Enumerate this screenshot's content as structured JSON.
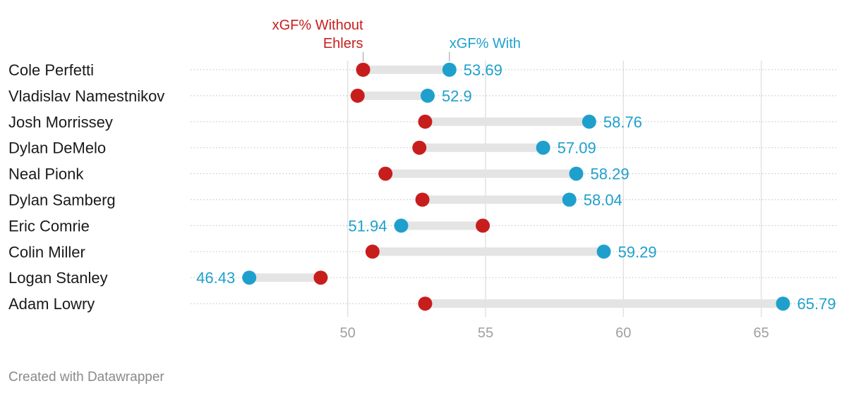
{
  "chart_data": {
    "type": "dot",
    "series": [
      {
        "name": "xGF% Without Ehlers",
        "legend_lines": [
          "xGF% Without",
          "Ehlers"
        ],
        "color": "#c71e1d"
      },
      {
        "name": "xGF% With",
        "legend_lines": [
          "xGF% With"
        ],
        "color": "#1fa0cc"
      }
    ],
    "categories": [
      "Cole Perfetti",
      "Vladislav Namestnikov",
      "Josh Morrissey",
      "Dylan DeMelo",
      "Neal Pionk",
      "Dylan Samberg",
      "Eric Comrie",
      "Colin Miller",
      "Logan Stanley",
      "Adam Lowry"
    ],
    "without": [
      50.56,
      50.36,
      52.81,
      52.6,
      51.37,
      52.71,
      54.9,
      50.9,
      49.02,
      52.81
    ],
    "with": [
      53.69,
      52.9,
      58.76,
      57.09,
      58.29,
      58.04,
      51.94,
      59.29,
      46.43,
      65.79
    ],
    "with_labels": [
      "53.69",
      "52.9",
      "58.76",
      "57.09",
      "58.29",
      "58.04",
      "51.94",
      "59.29",
      "46.43",
      "65.79"
    ],
    "xlim": [
      44.3,
      67.8
    ],
    "xticks": [
      50,
      55,
      60,
      65
    ],
    "xtick_labels": [
      "50",
      "55",
      "60",
      "65"
    ],
    "grid": true,
    "credit": "Created with Datawrapper"
  }
}
